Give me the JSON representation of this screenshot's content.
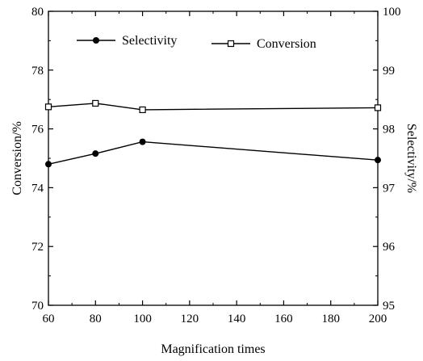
{
  "chart_data": {
    "type": "line",
    "xlabel": "Magnification times",
    "x_ticks": [
      "60",
      "80",
      "100",
      "120",
      "140",
      "160",
      "180",
      "200"
    ],
    "xlim": [
      60,
      200
    ],
    "left_axis": {
      "label": "Conversion/%",
      "ylim": [
        70,
        80
      ],
      "ticks": [
        "70",
        "72",
        "74",
        "76",
        "78",
        "80"
      ]
    },
    "right_axis": {
      "label": "Selectivity/%",
      "ylim": [
        95,
        100
      ],
      "ticks": [
        "95",
        "96",
        "97",
        "98",
        "99",
        "100"
      ]
    },
    "legend_position": "top",
    "grid": false,
    "series": [
      {
        "name": "Selectivity",
        "axis": "right",
        "marker": "filled-circle",
        "x": [
          60,
          80,
          100,
          200
        ],
        "y": [
          97.4,
          97.58,
          97.78,
          97.47
        ]
      },
      {
        "name": "Conversion",
        "axis": "left",
        "marker": "open-square",
        "x": [
          60,
          80,
          100,
          200
        ],
        "y": [
          76.75,
          76.87,
          76.65,
          76.72
        ]
      }
    ]
  }
}
